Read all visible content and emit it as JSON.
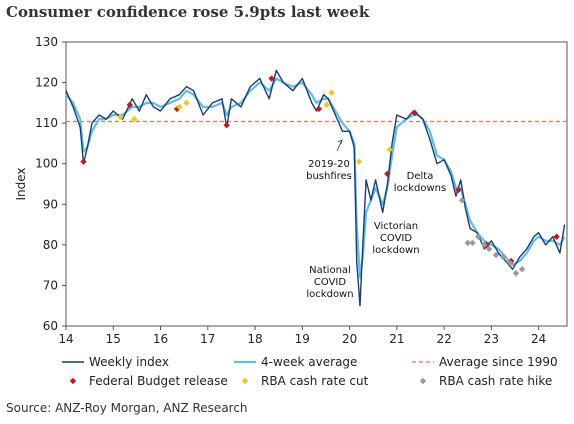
{
  "title": "Consumer confidence rose 5.9pts last week",
  "source": "Source: ANZ-Roy Morgan, ANZ Research",
  "colors": {
    "weekly": "#1f3a6e",
    "avg4": "#5bc0e6",
    "since1990": "#e8704a",
    "budget": "#c4161c",
    "cut": "#f5c518",
    "hike": "#9a9a9a"
  },
  "chart_data": {
    "type": "line",
    "title": "Consumer confidence rose 5.9pts last week",
    "xlabel": "",
    "ylabel": "Index",
    "xlim": [
      14,
      24.6
    ],
    "ylim": [
      60,
      130
    ],
    "xticks": [
      14,
      15,
      16,
      17,
      18,
      19,
      20,
      21,
      22,
      23,
      24
    ],
    "yticks": [
      60,
      70,
      80,
      90,
      100,
      110,
      120,
      130
    ],
    "reference_line": {
      "name": "Average since 1990",
      "value": 110.4
    },
    "series": [
      {
        "name": "Weekly index",
        "x": [
          14.0,
          14.15,
          14.3,
          14.37,
          14.45,
          14.55,
          14.7,
          14.85,
          15.0,
          15.2,
          15.4,
          15.55,
          15.7,
          15.85,
          16.0,
          16.2,
          16.4,
          16.55,
          16.7,
          16.9,
          17.1,
          17.3,
          17.4,
          17.5,
          17.7,
          17.9,
          18.1,
          18.3,
          18.45,
          18.6,
          18.8,
          19.0,
          19.2,
          19.3,
          19.45,
          19.55,
          19.7,
          19.85,
          20.0,
          20.1,
          20.15,
          20.22,
          20.28,
          20.35,
          20.45,
          20.55,
          20.7,
          20.8,
          20.9,
          21.0,
          21.2,
          21.35,
          21.45,
          21.55,
          21.7,
          21.85,
          22.0,
          22.15,
          22.25,
          22.35,
          22.45,
          22.55,
          22.7,
          22.85,
          23.0,
          23.15,
          23.3,
          23.45,
          23.6,
          23.75,
          23.9,
          24.0,
          24.15,
          24.3,
          24.45,
          24.55
        ],
        "y": [
          118,
          114,
          109,
          100,
          104,
          110,
          112,
          111,
          113,
          111,
          116,
          113,
          117,
          114,
          113,
          116,
          117,
          119,
          118,
          112,
          115,
          116,
          109,
          116,
          114,
          119,
          121,
          116,
          123,
          120,
          118,
          121,
          115,
          113,
          117,
          116,
          112,
          108,
          108,
          104,
          76,
          65,
          80,
          96,
          91,
          96,
          88,
          95,
          105,
          112,
          111,
          113,
          112,
          111,
          106,
          100,
          101,
          97,
          92,
          96,
          89,
          84,
          83,
          79,
          81,
          78,
          76,
          74,
          77,
          79,
          82,
          83,
          80,
          82,
          78,
          85
        ]
      },
      {
        "name": "4-week average",
        "x": [
          14.0,
          14.15,
          14.3,
          14.37,
          14.45,
          14.55,
          14.7,
          14.85,
          15.0,
          15.2,
          15.4,
          15.55,
          15.7,
          15.85,
          16.0,
          16.2,
          16.4,
          16.55,
          16.7,
          16.9,
          17.1,
          17.3,
          17.4,
          17.5,
          17.7,
          17.9,
          18.1,
          18.3,
          18.45,
          18.6,
          18.8,
          19.0,
          19.2,
          19.3,
          19.45,
          19.55,
          19.7,
          19.85,
          20.0,
          20.1,
          20.15,
          20.22,
          20.28,
          20.35,
          20.45,
          20.55,
          20.7,
          20.8,
          20.9,
          21.0,
          21.2,
          21.35,
          21.45,
          21.55,
          21.7,
          21.85,
          22.0,
          22.15,
          22.25,
          22.35,
          22.45,
          22.55,
          22.7,
          22.85,
          23.0,
          23.15,
          23.3,
          23.45,
          23.6,
          23.75,
          23.9,
          24.0,
          24.15,
          24.3,
          24.45,
          24.55
        ],
        "y": [
          117,
          115,
          111,
          103,
          104,
          108,
          111,
          111,
          112,
          112,
          114,
          114,
          115,
          115,
          114,
          115,
          116,
          118,
          117,
          114,
          114,
          115,
          112,
          114,
          115,
          118,
          120,
          118,
          121,
          120,
          119,
          120,
          117,
          115,
          116,
          116,
          113,
          110,
          108,
          105,
          85,
          72,
          77,
          88,
          91,
          94,
          90,
          94,
          102,
          109,
          111,
          112,
          112,
          111,
          108,
          102,
          101,
          98,
          94,
          94,
          90,
          86,
          83,
          81,
          80,
          79,
          77,
          75,
          76,
          78,
          81,
          82,
          81,
          81,
          80,
          82
        ]
      }
    ],
    "markers": [
      {
        "name": "Federal Budget release",
        "x": [
          14.37,
          15.35,
          16.35,
          17.4,
          18.35,
          19.35,
          20.8,
          21.38,
          22.3,
          22.9,
          23.42,
          24.38
        ],
        "y": [
          100.5,
          114.5,
          113.5,
          109.5,
          121,
          113.5,
          97.5,
          112.5,
          93.5,
          80,
          76,
          82
        ]
      },
      {
        "name": "RBA cash rate cut",
        "x": [
          15.15,
          15.45,
          16.4,
          16.55,
          19.52,
          19.62,
          20.2,
          20.85
        ],
        "y": [
          111.5,
          111,
          114,
          115,
          114.5,
          117.5,
          100.5,
          103.5
        ]
      },
      {
        "name": "RBA cash rate hike",
        "x": [
          22.38,
          22.5,
          22.6,
          22.72,
          22.85,
          22.95,
          23.1,
          23.25,
          23.4,
          23.52,
          23.65
        ],
        "y": [
          91,
          80.5,
          80.5,
          82,
          80,
          79,
          77.5,
          77,
          75.5,
          73,
          74
        ]
      }
    ],
    "annotations": [
      {
        "text": [
          "2019-20",
          "bushfires"
        ]
      },
      {
        "text": [
          "National",
          "COVID",
          "lockdown"
        ]
      },
      {
        "text": [
          "Victorian",
          "COVID",
          "lockdown"
        ]
      },
      {
        "text": [
          "Delta",
          "lockdowns"
        ]
      }
    ],
    "legend": {
      "placement": "bottom",
      "items": [
        "Weekly index",
        "4-week average",
        "Average since 1990",
        "Federal Budget release",
        "RBA cash rate cut",
        "RBA cash rate hike"
      ]
    }
  }
}
